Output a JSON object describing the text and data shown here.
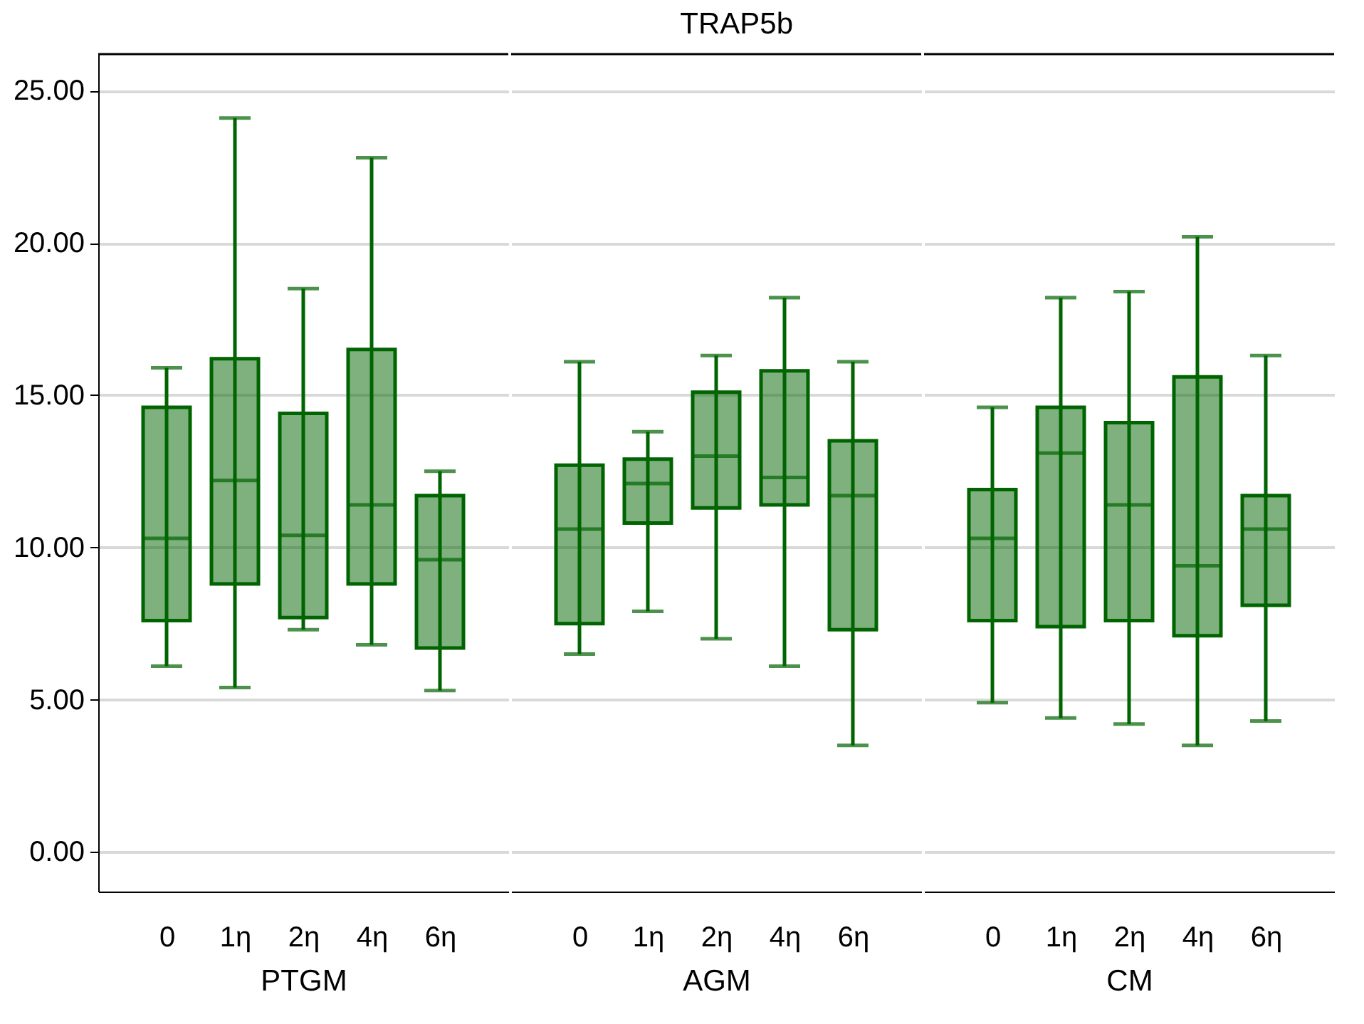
{
  "chart_data": [
    {
      "type": "box",
      "xlabel": "PTGM",
      "categories": [
        "0",
        "1η",
        "2η",
        "4η",
        "6η"
      ],
      "ylim": [
        -1.3,
        26.2
      ],
      "yticks": [
        {
          "value": 0,
          "label": "0.00"
        },
        {
          "value": 5,
          "label": "5.00"
        },
        {
          "value": 10,
          "label": "10.00"
        },
        {
          "value": 15,
          "label": "15.00"
        },
        {
          "value": 20,
          "label": "20.00"
        },
        {
          "value": 25,
          "label": "25.00"
        }
      ],
      "grid": "y",
      "series": [
        {
          "color": "#006400",
          "boxes": [
            {
              "low": 6.1,
              "q1": 7.6,
              "median": 10.3,
              "q3": 14.6,
              "high": 15.9
            },
            {
              "low": 5.4,
              "q1": 8.8,
              "median": 12.2,
              "q3": 16.2,
              "high": 24.1
            },
            {
              "low": 7.3,
              "q1": 7.7,
              "median": 10.4,
              "q3": 14.4,
              "high": 18.5
            },
            {
              "low": 6.8,
              "q1": 8.8,
              "median": 11.4,
              "q3": 16.5,
              "high": 22.8
            },
            {
              "low": 5.3,
              "q1": 6.7,
              "median": 9.6,
              "q3": 11.7,
              "high": 12.5
            }
          ]
        }
      ]
    },
    {
      "type": "box",
      "title": "TRAP5b",
      "xlabel": "AGM",
      "categories": [
        "0",
        "1η",
        "2η",
        "4η",
        "6η"
      ],
      "ylim": [
        -1.3,
        26.2
      ],
      "yticks": [
        {
          "value": 0,
          "label": null
        },
        {
          "value": 5,
          "label": null
        },
        {
          "value": 10,
          "label": null
        },
        {
          "value": 15,
          "label": null
        },
        {
          "value": 20,
          "label": null
        },
        {
          "value": 25,
          "label": null
        }
      ],
      "grid": "y",
      "tick_labels": "x",
      "series": [
        {
          "color": "#006400",
          "boxes": [
            {
              "low": 6.5,
              "q1": 7.5,
              "median": 10.6,
              "q3": 12.7,
              "high": 16.1
            },
            {
              "low": 7.9,
              "q1": 10.8,
              "median": 12.1,
              "q3": 12.9,
              "high": 13.8
            },
            {
              "low": 7.0,
              "q1": 11.3,
              "median": 13.0,
              "q3": 15.1,
              "high": 16.3
            },
            {
              "low": 6.1,
              "q1": 11.4,
              "median": 12.3,
              "q3": 15.8,
              "high": 18.2
            },
            {
              "low": 3.5,
              "q1": 7.3,
              "median": 11.7,
              "q3": 13.5,
              "high": 16.1
            }
          ]
        }
      ]
    },
    {
      "type": "box",
      "xlabel": "CM",
      "categories": [
        "0",
        "1η",
        "2η",
        "4η",
        "6η"
      ],
      "ylim": [
        -1.3,
        26.2
      ],
      "yticks": [
        {
          "value": 0,
          "label": null
        },
        {
          "value": 5,
          "label": null
        },
        {
          "value": 10,
          "label": null
        },
        {
          "value": 15,
          "label": null
        },
        {
          "value": 20,
          "label": null
        },
        {
          "value": 25,
          "label": null
        }
      ],
      "grid": "y",
      "tick_labels": "x",
      "series": [
        {
          "color": "#006400",
          "boxes": [
            {
              "low": 4.9,
              "q1": 7.6,
              "median": 10.3,
              "q3": 11.9,
              "high": 14.6
            },
            {
              "low": 4.4,
              "q1": 7.4,
              "median": 13.1,
              "q3": 14.6,
              "high": 18.2
            },
            {
              "low": 4.2,
              "q1": 7.6,
              "median": 11.4,
              "q3": 14.1,
              "high": 18.4
            },
            {
              "low": 3.5,
              "q1": 7.1,
              "median": 9.4,
              "q3": 15.6,
              "high": 20.2
            },
            {
              "low": 4.3,
              "q1": 8.1,
              "median": 10.6,
              "q3": 11.7,
              "high": 16.3
            }
          ]
        }
      ]
    }
  ]
}
